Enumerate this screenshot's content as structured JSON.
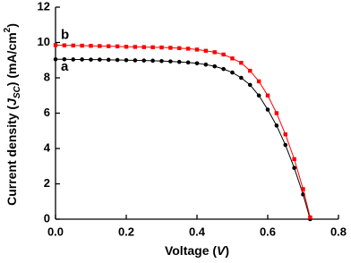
{
  "chart_data": {
    "type": "scatter",
    "x_label": {
      "parts": [
        "Voltage (",
        "V",
        ")"
      ]
    },
    "y_label": {
      "parts": [
        "Current density (",
        "J",
        "SC",
        ") (mA/cm",
        "2",
        ")"
      ]
    },
    "x": [
      0,
      0.025,
      0.05,
      0.075,
      0.1,
      0.125,
      0.15,
      0.175,
      0.2,
      0.225,
      0.25,
      0.275,
      0.3,
      0.325,
      0.35,
      0.375,
      0.4,
      0.425,
      0.45,
      0.475,
      0.5,
      0.525,
      0.55,
      0.575,
      0.6,
      0.625,
      0.65,
      0.675,
      0.7,
      0.72
    ],
    "series": [
      {
        "name": "a",
        "color": "#000000",
        "marker": "circle",
        "values": [
          9.05,
          9.05,
          9.04,
          9.04,
          9.03,
          9.03,
          9.02,
          9.01,
          9.0,
          8.99,
          8.98,
          8.97,
          8.95,
          8.93,
          8.9,
          8.87,
          8.82,
          8.75,
          8.65,
          8.5,
          8.3,
          8.0,
          7.6,
          7.0,
          6.2,
          5.3,
          4.2,
          2.9,
          1.4,
          0.0
        ]
      },
      {
        "name": "b",
        "color": "#ff0000",
        "marker": "square",
        "values": [
          9.85,
          9.84,
          9.83,
          9.82,
          9.81,
          9.8,
          9.79,
          9.78,
          9.76,
          9.75,
          9.74,
          9.73,
          9.72,
          9.7,
          9.68,
          9.65,
          9.6,
          9.53,
          9.45,
          9.32,
          9.1,
          8.85,
          8.4,
          7.8,
          7.0,
          6.0,
          4.8,
          3.4,
          1.7,
          0.1
        ]
      }
    ],
    "xlim": [
      0,
      0.8
    ],
    "xticks": [
      {
        "value": 0,
        "label": "0.0"
      },
      0.2,
      0.4,
      0.6,
      0.8
    ],
    "ylim": [
      0,
      12
    ],
    "yticks": [
      0,
      2,
      4,
      6,
      8,
      10,
      12
    ]
  }
}
